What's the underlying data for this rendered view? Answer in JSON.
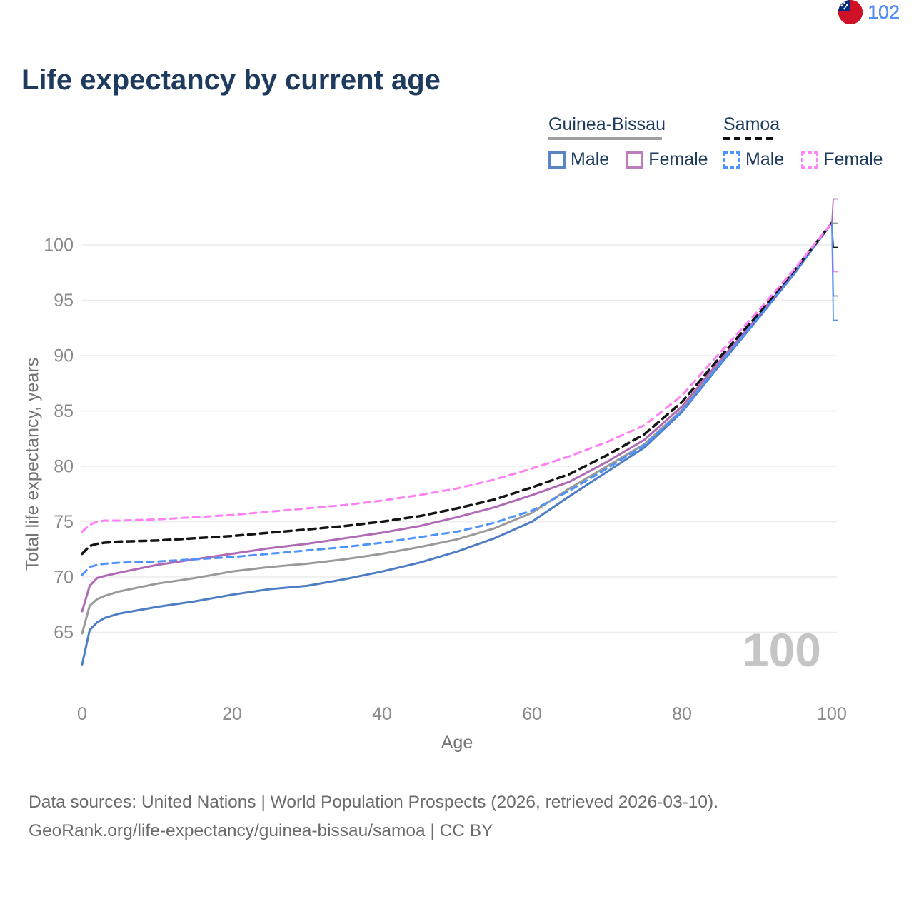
{
  "title": "Life expectancy by current age",
  "watermark": "100",
  "legend": {
    "groups": [
      {
        "label": "Guinea-Bissau",
        "underline_style": "solid",
        "underline_color": "#9e9e9e",
        "items": [
          {
            "label": "Male",
            "color": "#5b84c6",
            "dash": false
          },
          {
            "label": "Female",
            "color": "#bd7ebd",
            "dash": false
          }
        ]
      },
      {
        "label": "Samoa",
        "underline_style": "dashed",
        "underline_color": "#111111",
        "items": [
          {
            "label": "Male",
            "color": "#4d94ff",
            "dash": true
          },
          {
            "label": "Female",
            "color": "#ff85f5",
            "dash": true
          }
        ]
      }
    ]
  },
  "chart_data": {
    "type": "line",
    "title": "Life expectancy by current age",
    "xlabel": "Age",
    "ylabel": "Total life expectancy, years",
    "x_ticks": [
      0,
      20,
      40,
      60,
      80,
      100
    ],
    "y_ticks": [
      65,
      70,
      75,
      80,
      85,
      90,
      95,
      100
    ],
    "xlim": [
      0,
      100
    ],
    "ylim": [
      62,
      102
    ],
    "grid": "horizontal",
    "legend_position": "top-right",
    "ages": [
      0,
      1,
      2,
      3,
      5,
      10,
      15,
      20,
      25,
      30,
      35,
      40,
      45,
      50,
      55,
      60,
      65,
      70,
      75,
      80,
      85,
      90,
      95,
      100
    ],
    "series": [
      {
        "name": "Guinea-Bissau Female",
        "country": "Guinea-Bissau",
        "sex": "Female",
        "color": "#b069b4",
        "dash": false,
        "width": 3,
        "end_label": "102",
        "values": [
          66.9,
          69.2,
          69.9,
          70.1,
          70.4,
          71.1,
          71.6,
          72.1,
          72.6,
          73.0,
          73.5,
          74.0,
          74.6,
          75.4,
          76.3,
          77.4,
          78.6,
          80.4,
          82.4,
          85.4,
          89.5,
          93.4,
          97.6,
          102
        ]
      },
      {
        "name": "Guinea-Bissau",
        "country": "Guinea-Bissau",
        "sex": "Both",
        "color": "#9a9a9a",
        "dash": false,
        "width": 3,
        "end_label": "102",
        "values": [
          64.9,
          67.4,
          68.0,
          68.3,
          68.7,
          69.4,
          69.9,
          70.5,
          70.9,
          71.2,
          71.6,
          72.1,
          72.7,
          73.4,
          74.4,
          75.8,
          78.0,
          80.0,
          82.0,
          85.1,
          89.3,
          93.3,
          97.5,
          102
        ]
      },
      {
        "name": "Samoa",
        "country": "Samoa",
        "sex": "Both",
        "color": "#141414",
        "dash": true,
        "width": 3.5,
        "end_label": "102",
        "values": [
          72.1,
          72.8,
          73.0,
          73.1,
          73.2,
          73.3,
          73.5,
          73.7,
          74.0,
          74.3,
          74.6,
          75.0,
          75.5,
          76.2,
          77.0,
          78.1,
          79.3,
          81.0,
          82.9,
          85.8,
          89.8,
          93.6,
          97.7,
          102
        ]
      },
      {
        "name": "Samoa Female",
        "country": "Samoa",
        "sex": "Female",
        "color": "#fd80f5",
        "dash": true,
        "width": 3,
        "end_label": "102",
        "values": [
          74.1,
          74.7,
          75.0,
          75.1,
          75.1,
          75.2,
          75.4,
          75.6,
          75.9,
          76.2,
          76.5,
          76.9,
          77.4,
          78.0,
          78.8,
          79.8,
          80.9,
          82.2,
          83.7,
          86.4,
          90.2,
          93.9,
          97.8,
          102
        ]
      },
      {
        "name": "Guinea-Bissau Male",
        "country": "Guinea-Bissau",
        "sex": "Male",
        "color": "#4e7dc4",
        "dash": false,
        "width": 3,
        "end_label": "102",
        "values": [
          62.1,
          65.2,
          65.9,
          66.3,
          66.7,
          67.3,
          67.8,
          68.4,
          68.9,
          69.2,
          69.8,
          70.5,
          71.3,
          72.3,
          73.5,
          75.0,
          77.3,
          79.5,
          81.7,
          84.9,
          89.1,
          93.2,
          97.4,
          102
        ]
      },
      {
        "name": "Samoa Male",
        "country": "Samoa",
        "sex": "Male",
        "color": "#4d93fb",
        "dash": true,
        "width": 3,
        "end_label": "102",
        "values": [
          70.2,
          70.9,
          71.1,
          71.2,
          71.3,
          71.4,
          71.6,
          71.8,
          72.1,
          72.4,
          72.7,
          73.1,
          73.6,
          74.1,
          74.9,
          76.0,
          77.8,
          79.8,
          81.9,
          85.0,
          89.2,
          93.3,
          97.5,
          102
        ]
      }
    ]
  },
  "footer": {
    "line1": "Data sources: United Nations | World Population Prospects (2026, retrieved 2026-03-10).",
    "line2": "GeoRank.org/life-expectancy/guinea-bissau/samoa | CC BY"
  }
}
